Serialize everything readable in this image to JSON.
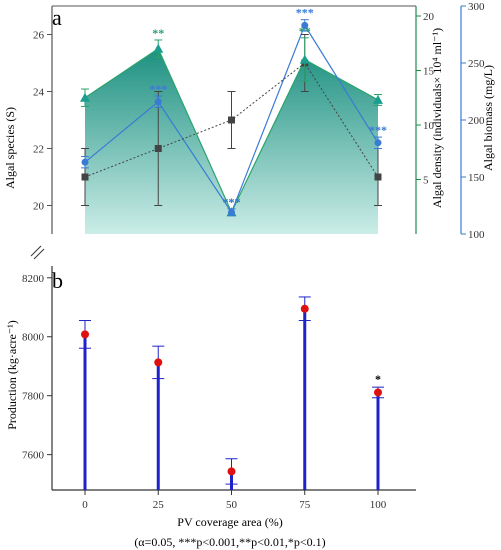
{
  "chart_data": [
    {
      "panel": "a",
      "type": "line",
      "x": [
        0,
        25,
        50,
        75,
        100
      ],
      "xtick_labels": [
        "0",
        "25",
        "50",
        "75",
        "100"
      ],
      "y_left": {
        "label": "Algal species (S)",
        "range": [
          19,
          27
        ],
        "ticks": [
          20,
          22,
          24,
          26
        ],
        "color": "#555555"
      },
      "y_right1": {
        "label": "Algal density (individuals× 10⁴ ml⁻¹)",
        "range": [
          0,
          20
        ],
        "ticks": [
          5,
          10,
          15,
          20
        ],
        "color": "#1f8a4c"
      },
      "y_right2": {
        "label": "Algal biomass (mg/L)",
        "range": [
          100,
          300
        ],
        "ticks": [
          100,
          150,
          200,
          250,
          300
        ],
        "color": "#3a7bd5"
      },
      "series": [
        {
          "name": "Algal species",
          "axis": "left",
          "color": "#444444",
          "marker": "square",
          "values": [
            21.0,
            22.0,
            23.0,
            25.0,
            21.0
          ],
          "errors": [
            1.0,
            2.0,
            1.0,
            1.0,
            1.0
          ]
        },
        {
          "name": "Algal density",
          "axis": "right1",
          "color": "#1a9e8f",
          "marker": "triangle",
          "fill": true,
          "values": [
            12.5,
            17.0,
            2.0,
            16.0,
            12.3
          ],
          "errors": [
            0.8,
            0.8,
            0.3,
            2.0,
            0.5
          ],
          "sig": [
            "",
            "**",
            "***",
            "**",
            ""
          ]
        },
        {
          "name": "Algal biomass",
          "axis": "right2",
          "color": "#3a7bd5",
          "marker": "circle",
          "values": [
            163,
            216,
            119,
            283,
            180
          ],
          "errors": [
            5,
            5,
            3,
            5,
            5
          ],
          "sig": [
            "",
            "***",
            "***",
            "***",
            "***"
          ]
        }
      ]
    },
    {
      "panel": "b",
      "type": "bar",
      "x": [
        0,
        25,
        50,
        75,
        100
      ],
      "xtick_labels": [
        "0",
        "25",
        "50",
        "75",
        "100"
      ],
      "xlabel": "PV coverage area (%)",
      "ylabel": "Production (kg·acre⁻¹)",
      "ylim": [
        7480,
        8240
      ],
      "yticks": [
        7600,
        7800,
        8000,
        8200
      ],
      "bar_color": "#1e22c8",
      "point_color": "#e01010",
      "values": [
        8008,
        7913,
        7543,
        8095,
        7811
      ],
      "errors": [
        47,
        55,
        43,
        40,
        18
      ],
      "sig": [
        "",
        "",
        "",
        "",
        "*"
      ],
      "footnote": "(α=0.05, ***p<0.001,**p<0.01,*p<0.1)"
    }
  ]
}
